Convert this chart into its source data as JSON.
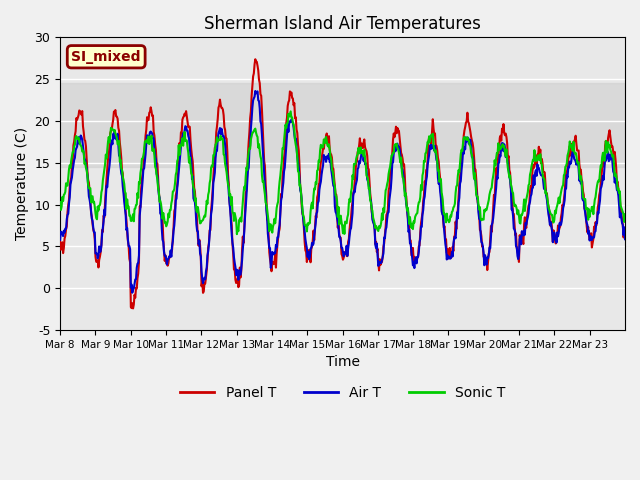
{
  "title": "Sherman Island Air Temperatures",
  "xlabel": "Time",
  "ylabel": "Temperature (C)",
  "ylim": [
    -5,
    30
  ],
  "yticks": [
    -5,
    0,
    5,
    10,
    15,
    20,
    25,
    30
  ],
  "xtick_labels": [
    "Mar 8",
    "Mar 9",
    "Mar 10",
    "Mar 11",
    "Mar 12",
    "Mar 13",
    "Mar 14",
    "Mar 15",
    "Mar 16",
    "Mar 17",
    "Mar 18",
    "Mar 19",
    "Mar 20",
    "Mar 21",
    "Mar 22",
    "Mar 23"
  ],
  "annotation_text": "SI_mixed",
  "annotation_bbox_fc": "#ffffcc",
  "annotation_bbox_ec": "#8b0000",
  "annotation_text_color": "#8b0000",
  "panel_t_color": "#cc0000",
  "air_t_color": "#0000cc",
  "sonic_t_color": "#00cc00",
  "plot_bg_color": "#e8e8e8",
  "shaded_band_lo": 14.5,
  "shaded_band_hi": 24.5,
  "shaded_band_color": "#d0d0d0",
  "line_width": 1.5,
  "num_days": 16,
  "points_per_day": 48,
  "panel_base": [
    13,
    12,
    12,
    12,
    11,
    12,
    13,
    11,
    11,
    11,
    11,
    12,
    11,
    11,
    12,
    12
  ],
  "panel_amp": [
    8,
    9,
    9,
    9,
    11,
    13,
    10,
    7,
    7,
    8,
    8,
    8,
    8,
    5,
    6,
    6
  ],
  "air_base": [
    12,
    11,
    11,
    11,
    10,
    11,
    12,
    10,
    10,
    10,
    10,
    11,
    10,
    10,
    11,
    11
  ],
  "air_amp": [
    6,
    7,
    8,
    8,
    9,
    11,
    8,
    6,
    6,
    7,
    7,
    7,
    7,
    4,
    5,
    5
  ],
  "sonic_base": [
    14,
    14,
    13,
    13,
    13,
    13,
    14,
    13,
    12,
    12,
    13,
    13,
    13,
    12,
    13,
    13
  ],
  "sonic_amp": [
    4,
    5,
    5,
    5,
    5,
    6,
    7,
    5,
    5,
    5,
    5,
    5,
    4,
    4,
    4,
    4
  ]
}
